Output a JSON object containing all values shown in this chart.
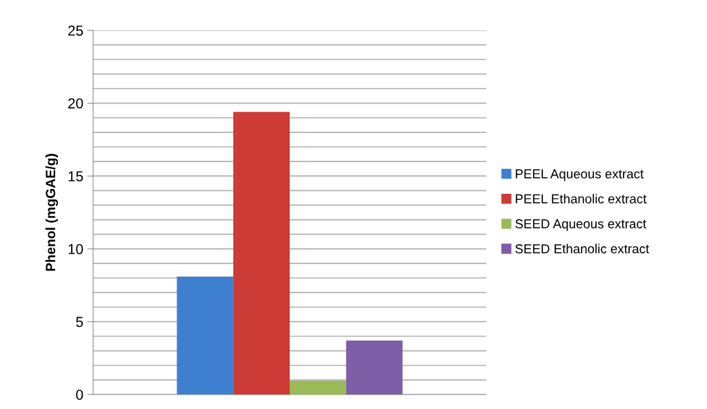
{
  "chart_data": {
    "type": "bar",
    "ylabel": "Phenol (mgGAE/g)",
    "categories": [
      null
    ],
    "series": [
      {
        "name": "PEEL Aqueous extract",
        "color": "#3f7fcf",
        "values": [
          8.1
        ]
      },
      {
        "name": "PEEL Ethanolic extract",
        "color": "#cc3b35",
        "values": [
          19.4
        ]
      },
      {
        "name": "SEED Aqueous extract",
        "color": "#9bbb59",
        "values": [
          0.95
        ]
      },
      {
        "name": "SEED Ethanolic extract",
        "color": "#7f5ea8",
        "values": [
          3.7
        ]
      }
    ],
    "ylim": [
      0,
      25
    ],
    "yticks": [
      0,
      {
        "value": 1,
        "label": null
      },
      {
        "value": 2,
        "label": null
      },
      {
        "value": 3,
        "label": null
      },
      {
        "value": 4,
        "label": null
      },
      5,
      {
        "value": 6,
        "label": null
      },
      {
        "value": 7,
        "label": null
      },
      {
        "value": 8,
        "label": null
      },
      {
        "value": 9,
        "label": null
      },
      10,
      {
        "value": 11,
        "label": null
      },
      {
        "value": 12,
        "label": null
      },
      {
        "value": 13,
        "label": null
      },
      {
        "value": 14,
        "label": null
      },
      15,
      {
        "value": 16,
        "label": null
      },
      {
        "value": 17,
        "label": null
      },
      {
        "value": 18,
        "label": null
      },
      {
        "value": 19,
        "label": null
      },
      20,
      {
        "value": 21,
        "label": null
      },
      {
        "value": 22,
        "label": null
      },
      {
        "value": 23,
        "label": null
      },
      {
        "value": 24,
        "label": null
      },
      25
    ],
    "grid": "y",
    "legend": "right"
  }
}
